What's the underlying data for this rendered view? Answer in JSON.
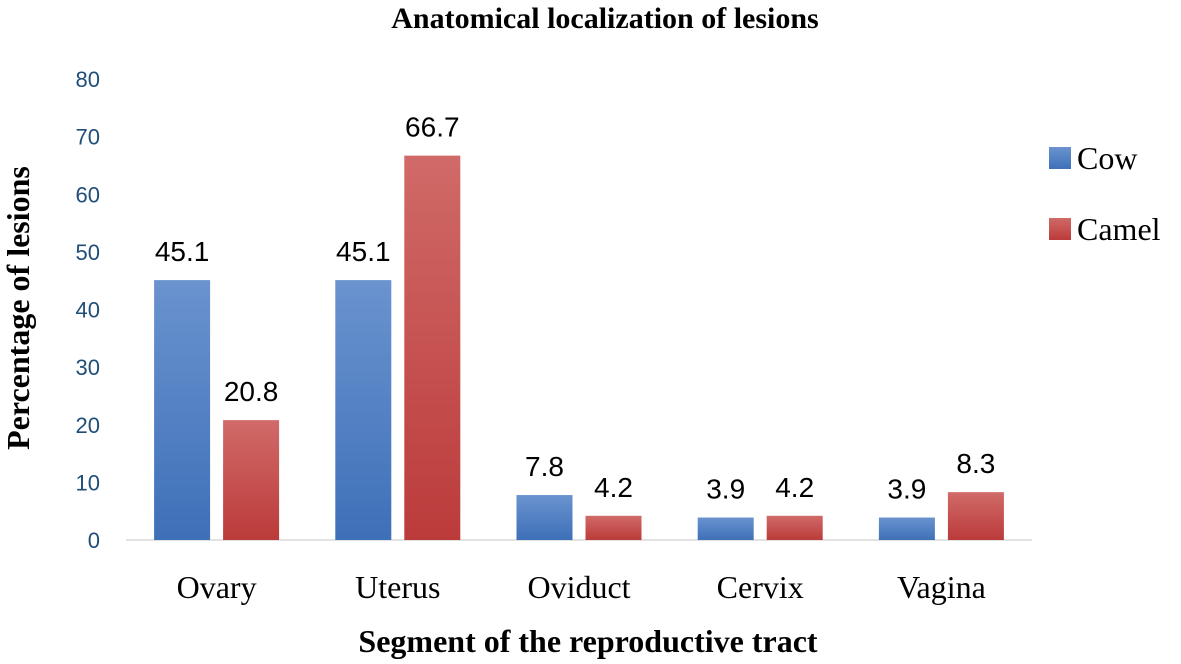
{
  "chart_data": {
    "type": "bar",
    "title": "Anatomical localization of lesions",
    "xlabel": "Segment of the reproductive tract",
    "ylabel": "Percentage of lesions",
    "ylim": [
      0,
      80
    ],
    "yticks": [
      0,
      10,
      20,
      30,
      40,
      50,
      60,
      70,
      80
    ],
    "grid": false,
    "legend_position": "right",
    "categories": [
      "Ovary",
      "Uterus",
      "Oviduct",
      "Cervix",
      "Vagina"
    ],
    "series": [
      {
        "name": "Cow",
        "values": [
          45.1,
          45.1,
          7.8,
          3.9,
          3.9
        ],
        "labels": [
          "45.1",
          "45.1",
          "7.8",
          "3.9",
          "3.9"
        ],
        "color_top": "#6a93cf",
        "color_bottom": "#3e70b8"
      },
      {
        "name": "Camel",
        "values": [
          20.8,
          66.7,
          4.2,
          4.2,
          8.3
        ],
        "labels": [
          "20.8",
          "66.7",
          "4.2",
          "4.2",
          "8.3"
        ],
        "color_top": "#d06a68",
        "color_bottom": "#bb3b3a"
      }
    ]
  }
}
